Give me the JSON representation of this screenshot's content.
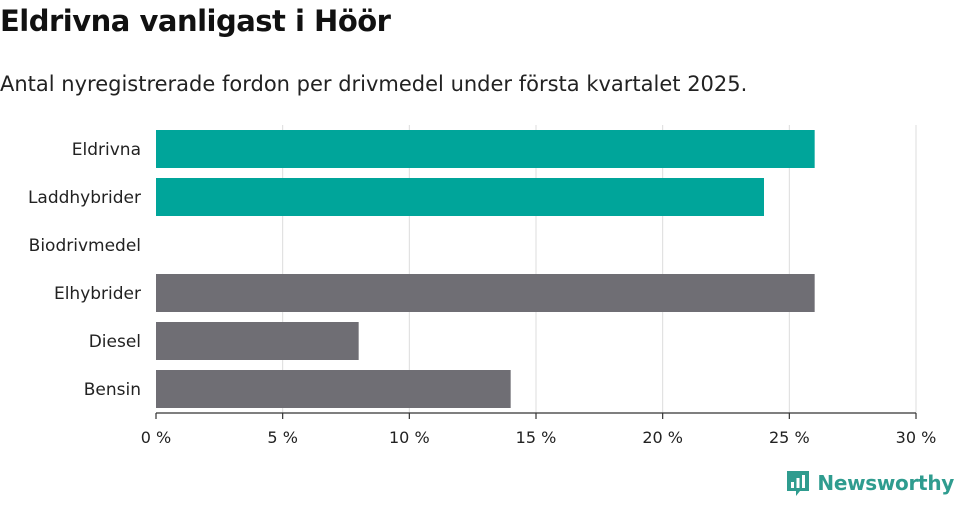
{
  "title": "Eldrivna vanligast i Höör",
  "subtitle": "Antal nyregistrerade fordon per drivmedel under första kvartalet 2025.",
  "brand": {
    "name": "Newsworthy",
    "icon": "newsworthy-logo-icon"
  },
  "colors": {
    "highlight": "#00a59a",
    "other": "#6f6e74",
    "grid": "#dcdcdc",
    "axis": "#333333"
  },
  "chart_data": {
    "type": "bar",
    "orientation": "horizontal",
    "categories": [
      "Eldrivna",
      "Laddhybrider",
      "Biodrivmedel",
      "Elhybrider",
      "Diesel",
      "Bensin"
    ],
    "values": [
      26,
      24,
      0,
      26,
      8,
      14
    ],
    "highlighted": [
      true,
      true,
      true,
      false,
      false,
      false
    ],
    "xlim": [
      0,
      30
    ],
    "xticks": [
      0,
      5,
      10,
      15,
      20,
      25,
      30
    ],
    "tick_labels": [
      "0 %",
      "5 %",
      "10 %",
      "15 %",
      "20 %",
      "25 %",
      "30 %"
    ],
    "grid": "vertical",
    "legend": "none"
  }
}
